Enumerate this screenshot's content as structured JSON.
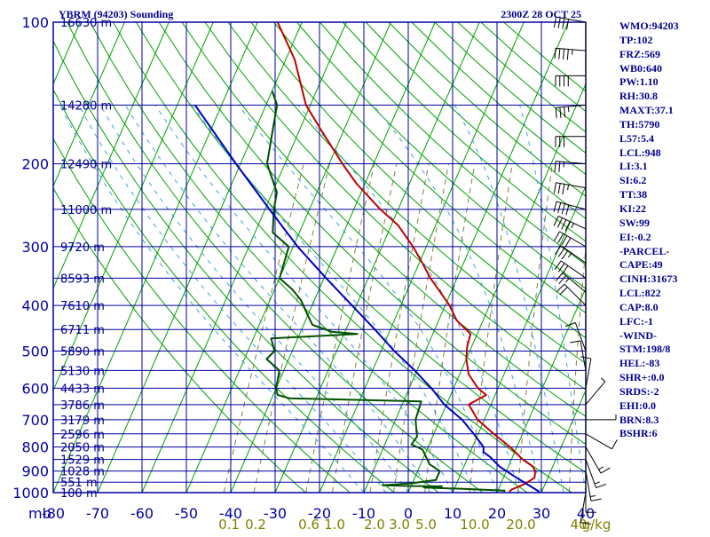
{
  "header": {
    "title": "YBRM (94203) Sounding",
    "datetime": "2300Z 28 OCT 25"
  },
  "indices": [
    "WMO:94203",
    "TP:102",
    "FRZ:569",
    "WB0:640",
    "PW:1.10",
    "RH:30.8",
    "MAXT:37.1",
    "TH:5790",
    "L57:5.4",
    "LCL:948",
    "LI:3.1",
    "SI:6.2",
    "TT:38",
    "KI:22",
    "SW:99",
    "EI:-0.2",
    "-PARCEL-",
    "CAPE:49",
    "CINH:31673",
    "LCL:822",
    "CAP:8.0",
    "LFC:-1",
    "-WIND-",
    "STM:198/8",
    "HEL:-83",
    "SHR+:0.0",
    "SRDS:-2",
    "EHI:0.0",
    "BRN:8.3",
    "BSHR:6"
  ],
  "colors": {
    "frame": "#0000a0",
    "isobar": "#0000a0",
    "isotherm": "#00a000",
    "dry_adiabat": "#00a000",
    "mixing_ratio": "#808040",
    "moist_adiabat": "#40a0e0",
    "temperature": "#c00000",
    "dewpoint": "#005000",
    "parcel": "#0000c0",
    "text": "#000090",
    "mixing_label": "#808000"
  },
  "chart_data": {
    "type": "line",
    "title": "YBRM (94203) Sounding",
    "xlabel": "",
    "ylabel": "mb",
    "x_unit": "°C",
    "xlim": [
      -80,
      40
    ],
    "ylim": [
      1000,
      100
    ],
    "y_scale": "log",
    "skew": true,
    "grid": true,
    "x_ticks": [
      "-80",
      "-70",
      "-60",
      "-50",
      "-40",
      "-30",
      "-20",
      "-10",
      "0",
      "10",
      "20",
      "30",
      "40"
    ],
    "pressure_ticks": [
      "100",
      "200",
      "300",
      "400",
      "500",
      "600",
      "700",
      "800",
      "900",
      "1000"
    ],
    "mixing_ratio_ticks": [
      "0.1",
      "0.2",
      "0.6",
      "1.0",
      "2.0",
      "3.0",
      "5.0",
      "10.0",
      "20.0",
      "40",
      "g/kg"
    ],
    "height_labels": [
      {
        "p": 100,
        "label": "16630 m"
      },
      {
        "p": 150,
        "label": "14280 m"
      },
      {
        "p": 200,
        "label": "12490 m"
      },
      {
        "p": 250,
        "label": "11000 m"
      },
      {
        "p": 300,
        "label": "9720 m"
      },
      {
        "p": 350,
        "label": "8593 m"
      },
      {
        "p": 400,
        "label": "7610 m"
      },
      {
        "p": 450,
        "label": "6711 m"
      },
      {
        "p": 500,
        "label": "5890 m"
      },
      {
        "p": 550,
        "label": "5130 m"
      },
      {
        "p": 600,
        "label": "4433 m"
      },
      {
        "p": 650,
        "label": "3786 m"
      },
      {
        "p": 700,
        "label": "3179 m"
      },
      {
        "p": 750,
        "label": "2596 m"
      },
      {
        "p": 800,
        "label": "2050 m"
      },
      {
        "p": 850,
        "label": "1529 m"
      },
      {
        "p": 900,
        "label": "1028 m"
      },
      {
        "p": 950,
        "label": "551 m"
      },
      {
        "p": 1000,
        "label": "100 m"
      }
    ],
    "series": [
      {
        "name": "Temperature",
        "points": [
          [
            996,
            22.7
          ],
          [
            985,
            23.0
          ],
          [
            960,
            25.3
          ],
          [
            930,
            27.0
          ],
          [
            900,
            26.5
          ],
          [
            880,
            25.5
          ],
          [
            850,
            22.5
          ],
          [
            800,
            18.5
          ],
          [
            750,
            13.5
          ],
          [
            700,
            8.5
          ],
          [
            650,
            5.0
          ],
          [
            620,
            8.0
          ],
          [
            600,
            5.5
          ],
          [
            560,
            2.0
          ],
          [
            520,
            0.0
          ],
          [
            490,
            -1.0
          ],
          [
            460,
            -1.5
          ],
          [
            430,
            -6.0
          ],
          [
            400,
            -9.0
          ],
          [
            350,
            -16.0
          ],
          [
            320,
            -20.0
          ],
          [
            300,
            -23.0
          ],
          [
            270,
            -28.5
          ],
          [
            250,
            -34.0
          ],
          [
            220,
            -42.0
          ],
          [
            200,
            -47.0
          ],
          [
            170,
            -55.0
          ],
          [
            150,
            -61.0
          ],
          [
            120,
            -68.0
          ],
          [
            100,
            -75.5
          ]
        ]
      },
      {
        "name": "Dewpoint",
        "points": [
          [
            996,
            21.5
          ],
          [
            990,
            21.5
          ],
          [
            982,
            12.0
          ],
          [
            975,
            3.0
          ],
          [
            970,
            7.0
          ],
          [
            968,
            -0.5
          ],
          [
            965,
            -6.5
          ],
          [
            955,
            0.0
          ],
          [
            940,
            5.0
          ],
          [
            900,
            5.0
          ],
          [
            870,
            2.0
          ],
          [
            810,
            -1.0
          ],
          [
            790,
            -4.0
          ],
          [
            760,
            -3.5
          ],
          [
            700,
            -5.5
          ],
          [
            640,
            -6.0
          ],
          [
            630,
            -36.0
          ],
          [
            620,
            -39.0
          ],
          [
            600,
            -40.0
          ],
          [
            550,
            -41.0
          ],
          [
            520,
            -45.0
          ],
          [
            500,
            -44.0
          ],
          [
            470,
            -46.0
          ],
          [
            460,
            -27.0
          ],
          [
            455,
            -33.0
          ],
          [
            440,
            -38.0
          ],
          [
            420,
            -40.0
          ],
          [
            390,
            -43.0
          ],
          [
            370,
            -46.0
          ],
          [
            350,
            -50.0
          ],
          [
            300,
            -51.0
          ],
          [
            280,
            -56.0
          ],
          [
            250,
            -58.0
          ],
          [
            230,
            -59.0
          ],
          [
            200,
            -64.0
          ],
          [
            170,
            -66.0
          ],
          [
            150,
            -67.5
          ],
          [
            140,
            -70.0
          ]
        ]
      },
      {
        "name": "Parcel",
        "points": [
          [
            996,
            29.5
          ],
          [
            960,
            26.0
          ],
          [
            920,
            22.0
          ],
          [
            880,
            18.0
          ],
          [
            840,
            15.0
          ],
          [
            820,
            13.0
          ],
          [
            800,
            12.5
          ],
          [
            750,
            9.0
          ],
          [
            700,
            5.0
          ],
          [
            650,
            -0.5
          ],
          [
            600,
            -5.0
          ],
          [
            550,
            -10.5
          ],
          [
            500,
            -17.0
          ],
          [
            450,
            -23.5
          ],
          [
            400,
            -31.0
          ],
          [
            350,
            -39.5
          ],
          [
            300,
            -49.0
          ],
          [
            250,
            -59.0
          ],
          [
            200,
            -71.0
          ],
          [
            150,
            -86.0
          ]
        ]
      }
    ]
  },
  "wind_barbs": [
    {
      "p": 100,
      "dir": 280,
      "speed_kt": 40
    },
    {
      "p": 115,
      "dir": 275,
      "speed_kt": 45
    },
    {
      "p": 130,
      "dir": 270,
      "speed_kt": 40
    },
    {
      "p": 150,
      "dir": 265,
      "speed_kt": 35
    },
    {
      "p": 175,
      "dir": 270,
      "speed_kt": 30
    },
    {
      "p": 200,
      "dir": 275,
      "speed_kt": 25
    },
    {
      "p": 225,
      "dir": 280,
      "speed_kt": 35
    },
    {
      "p": 250,
      "dir": 285,
      "speed_kt": 40
    },
    {
      "p": 275,
      "dir": 295,
      "speed_kt": 45
    },
    {
      "p": 300,
      "dir": 300,
      "speed_kt": 40
    },
    {
      "p": 325,
      "dir": 305,
      "speed_kt": 35
    },
    {
      "p": 350,
      "dir": 305,
      "speed_kt": 30
    },
    {
      "p": 375,
      "dir": 310,
      "speed_kt": 25
    },
    {
      "p": 400,
      "dir": 315,
      "speed_kt": 20
    },
    {
      "p": 500,
      "dir": 340,
      "speed_kt": 10
    },
    {
      "p": 550,
      "dir": 350,
      "speed_kt": 10
    },
    {
      "p": 600,
      "dir": 10,
      "speed_kt": 10
    },
    {
      "p": 650,
      "dir": 40,
      "speed_kt": 5
    },
    {
      "p": 700,
      "dir": 90,
      "speed_kt": 5
    },
    {
      "p": 750,
      "dir": 120,
      "speed_kt": 10
    },
    {
      "p": 800,
      "dir": 150,
      "speed_kt": 15
    },
    {
      "p": 850,
      "dir": 160,
      "speed_kt": 15
    },
    {
      "p": 900,
      "dir": 170,
      "speed_kt": 15
    },
    {
      "p": 950,
      "dir": 180,
      "speed_kt": 10
    },
    {
      "p": 1000,
      "dir": 190,
      "speed_kt": 10
    }
  ]
}
